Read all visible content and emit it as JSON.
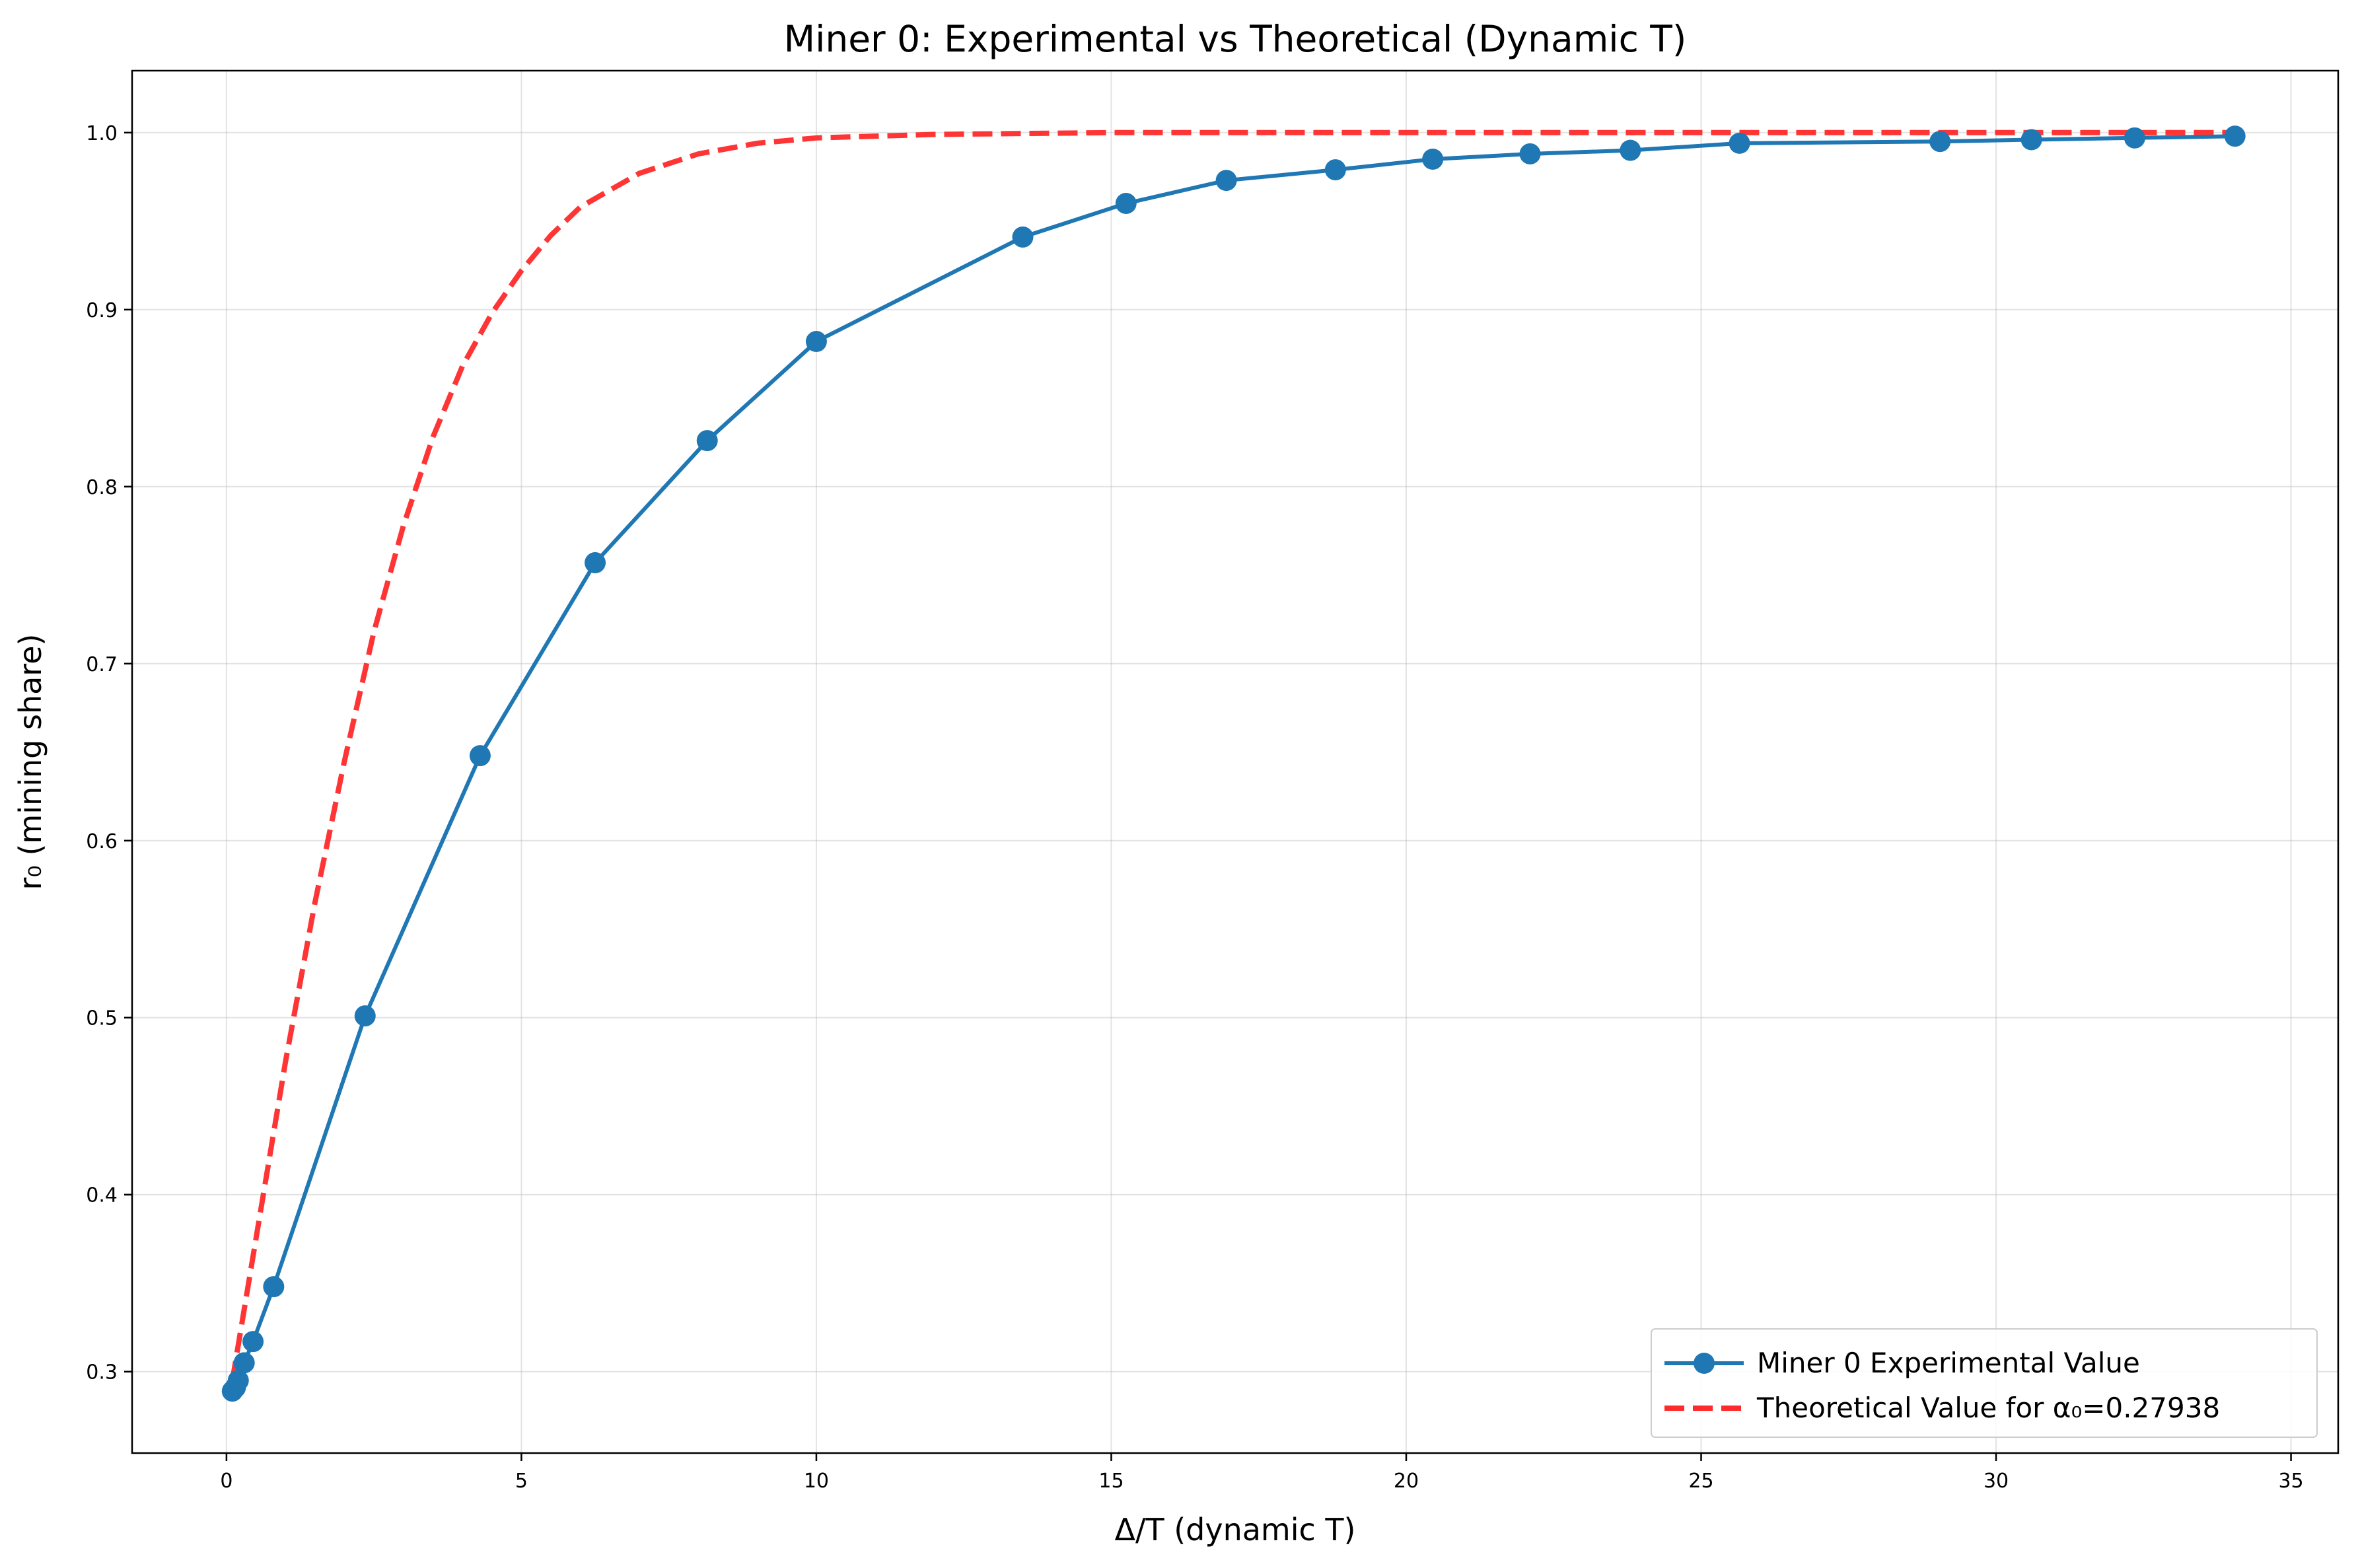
{
  "chart_data": {
    "type": "line",
    "title": "Miner 0: Experimental vs Theoretical (Dynamic T)",
    "xlabel": "Δ/T (dynamic T)",
    "ylabel": "r₀ (mining share)",
    "xlim": [
      -1.6,
      35.8
    ],
    "ylim": [
      0.254,
      1.035
    ],
    "xticks": [
      0,
      5,
      10,
      15,
      20,
      25,
      30,
      35
    ],
    "yticks": [
      0.3,
      0.4,
      0.5,
      0.6,
      0.7,
      0.8,
      0.9,
      1.0
    ],
    "xtick_labels": [
      "0",
      "5",
      "10",
      "15",
      "20",
      "25",
      "30",
      "35"
    ],
    "ytick_labels": [
      "0.3",
      "0.4",
      "0.5",
      "0.6",
      "0.7",
      "0.8",
      "0.9",
      "1.0"
    ],
    "grid": true,
    "legend_position": "lower-right",
    "series": [
      {
        "name": "Miner 0 Experimental Value",
        "style": "solid-line-with-markers",
        "color": "#1f77b4",
        "x": [
          0.1,
          0.15,
          0.2,
          0.3,
          0.45,
          0.8,
          2.35,
          4.3,
          6.25,
          8.15,
          10.0,
          13.5,
          15.25,
          16.95,
          18.8,
          20.45,
          22.1,
          23.8,
          25.65,
          29.05,
          30.6,
          32.35,
          34.05
        ],
        "y": [
          0.289,
          0.291,
          0.295,
          0.305,
          0.317,
          0.348,
          0.501,
          0.648,
          0.757,
          0.826,
          0.882,
          0.941,
          0.96,
          0.973,
          0.979,
          0.985,
          0.988,
          0.99,
          0.994,
          0.995,
          0.996,
          0.997,
          0.998
        ]
      },
      {
        "name": "Theoretical Value for α₀=0.27938",
        "style": "dashed-line",
        "color": "#ff2a2a",
        "x": [
          0.1,
          0.5,
          1.0,
          1.5,
          2.0,
          2.5,
          3.0,
          3.5,
          4.0,
          4.5,
          5.0,
          5.5,
          6.0,
          7.0,
          8.0,
          9.0,
          10.0,
          12.0,
          15.0,
          20.0,
          25.0,
          30.0,
          34.0
        ],
        "y": [
          0.295,
          0.375,
          0.475,
          0.565,
          0.645,
          0.718,
          0.778,
          0.828,
          0.868,
          0.898,
          0.922,
          0.942,
          0.958,
          0.977,
          0.988,
          0.994,
          0.997,
          0.999,
          1.0,
          1.0,
          1.0,
          1.0,
          1.0
        ]
      }
    ]
  }
}
